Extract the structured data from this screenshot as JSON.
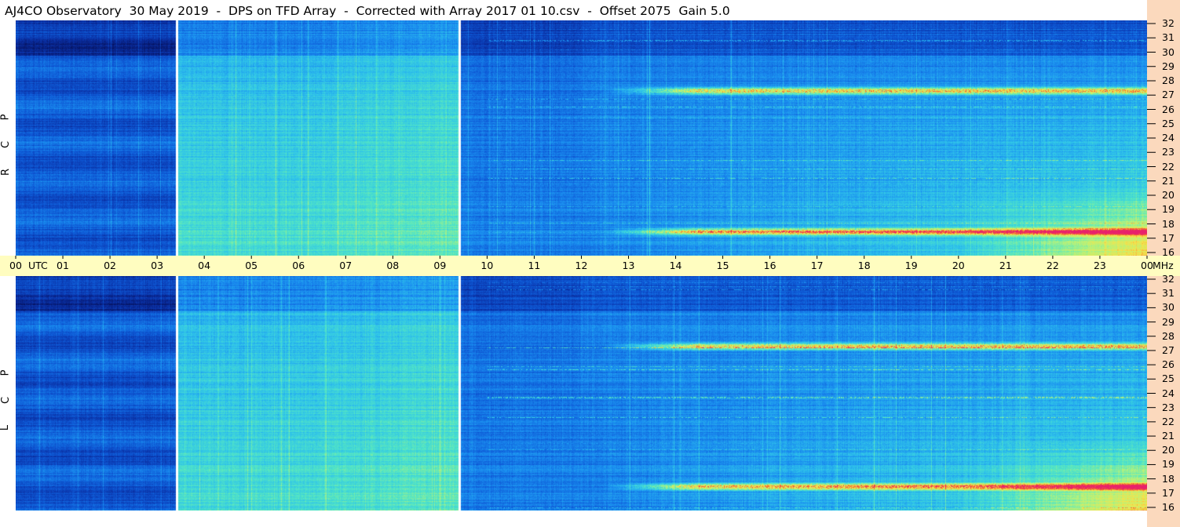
{
  "title": "AJ4CO Observatory  30 May 2019  -  DPS on TFD Array  -  Corrected with Array 2017 01 10.csv  -  Offset 2075  Gain 5.0",
  "panels": [
    {
      "id": "rcp",
      "label_letters": [
        "R",
        "C",
        "P"
      ]
    },
    {
      "id": "lcp",
      "label_letters": [
        "L",
        "C",
        "P"
      ]
    }
  ],
  "colors": {
    "time_axis_bg": "#fffdc0",
    "freq_axis_bg": "#fbd9bd",
    "colormap": [
      "#06125e",
      "#0a2fa3",
      "#0e59d6",
      "#1a8ef0",
      "#2fc4ea",
      "#53e6c4",
      "#b6f27a",
      "#f7e34a",
      "#f36a2e",
      "#e8206c"
    ]
  },
  "chart_data": {
    "type": "heatmap",
    "title": "AJ4CO Observatory  30 May 2019  -  DPS on TFD Array  -  Corrected with Array 2017 01 10.csv  -  Offset 2075  Gain 5.0",
    "x_axis": {
      "unit": "UTC",
      "range_hours": [
        0,
        24
      ],
      "tick_labels": [
        "00",
        "01",
        "02",
        "03",
        "04",
        "05",
        "06",
        "07",
        "08",
        "09",
        "10",
        "11",
        "12",
        "13",
        "14",
        "15",
        "16",
        "17",
        "18",
        "19",
        "20",
        "21",
        "22",
        "23",
        "00"
      ]
    },
    "y_axis": {
      "unit": "MHz",
      "range_mhz": [
        16,
        32
      ],
      "tick_labels": [
        "32",
        "31",
        "30",
        "29",
        "28",
        "27",
        "26",
        "25",
        "24",
        "23",
        "22",
        "21",
        "20",
        "19",
        "18",
        "17",
        "16"
      ]
    },
    "data_gap_markers_utc": [
      3.4,
      9.4
    ],
    "intense_bands_mhz": [
      27.2,
      17.6
    ],
    "series": [
      {
        "name": "R C P"
      },
      {
        "name": "L C P"
      }
    ]
  }
}
